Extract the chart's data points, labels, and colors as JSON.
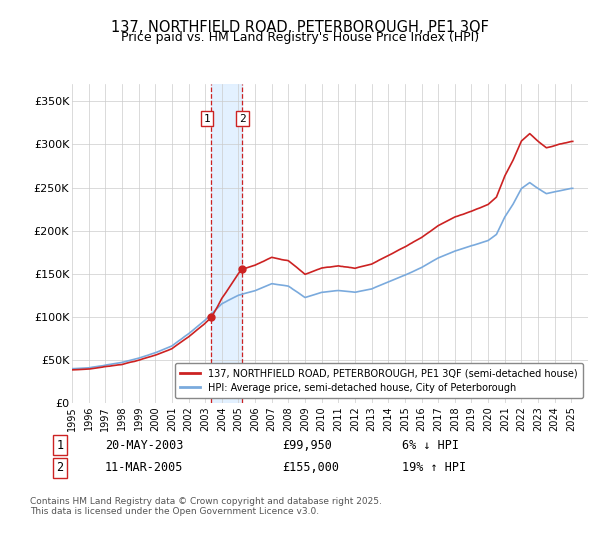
{
  "title": "137, NORTHFIELD ROAD, PETERBOROUGH, PE1 3QF",
  "subtitle": "Price paid vs. HM Land Registry's House Price Index (HPI)",
  "legend_line1": "137, NORTHFIELD ROAD, PETERBOROUGH, PE1 3QF (semi-detached house)",
  "legend_line2": "HPI: Average price, semi-detached house, City of Peterborough",
  "sale1_date": "20-MAY-2003",
  "sale1_price": "£99,950",
  "sale1_hpi": "6% ↓ HPI",
  "sale2_date": "11-MAR-2005",
  "sale2_price": "£155,000",
  "sale2_hpi": "19% ↑ HPI",
  "footer": "Contains HM Land Registry data © Crown copyright and database right 2025.\nThis data is licensed under the Open Government Licence v3.0.",
  "sale1_x": 2003.38,
  "sale2_x": 2005.19,
  "sale1_y": 99950,
  "sale2_y": 155000,
  "hpi_color": "#7aaadd",
  "price_color": "#cc2222",
  "vline_color": "#cc2222",
  "shade_color": "#ddeeff",
  "yticks": [
    0,
    50000,
    100000,
    150000,
    200000,
    250000,
    300000,
    350000
  ],
  "ytick_labels": [
    "£0",
    "£50K",
    "£100K",
    "£150K",
    "£200K",
    "£250K",
    "£300K",
    "£350K"
  ],
  "xmin": 1995,
  "xmax": 2026,
  "ymin": 0,
  "ymax": 370000
}
